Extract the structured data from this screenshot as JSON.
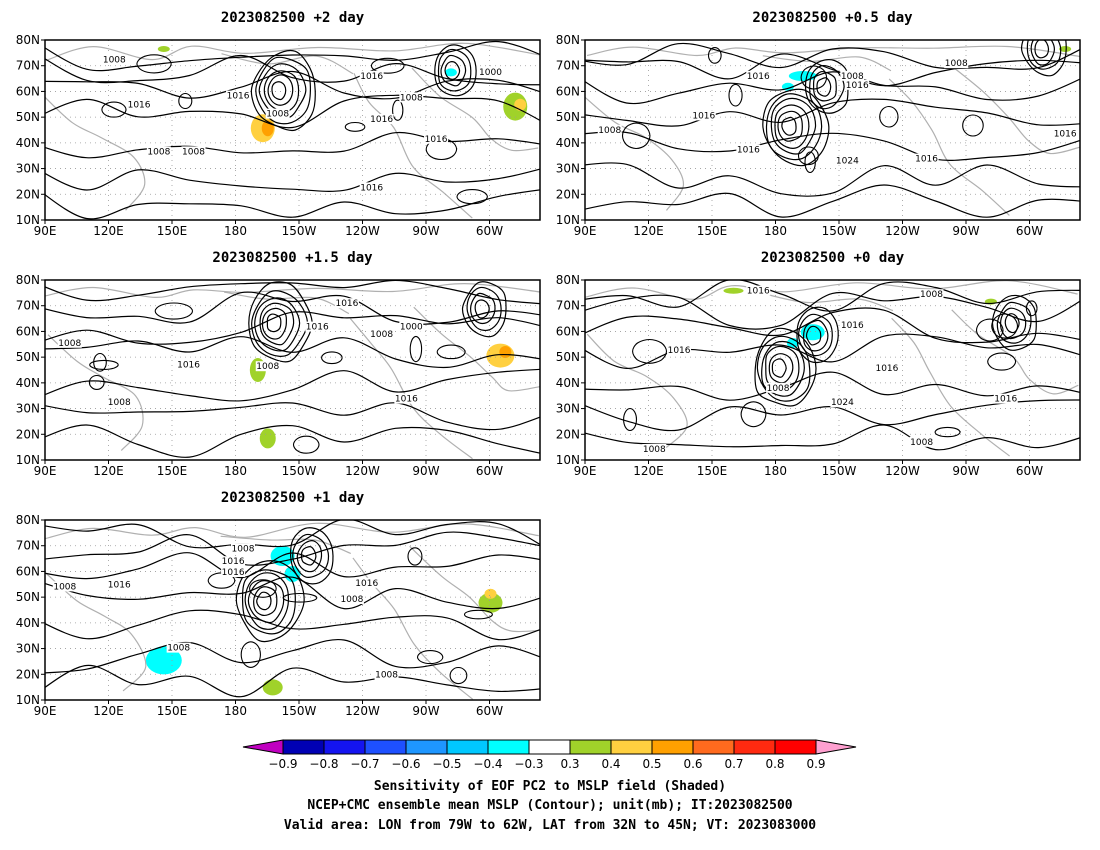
{
  "panels": [
    {
      "id": "p2",
      "title": "2023082500 +2 day",
      "contour_labels": [
        "1008",
        "1016",
        "1016",
        "1016",
        "1008",
        "1016",
        "1008",
        "1000",
        "1016",
        "1008",
        "1016",
        "1008"
      ]
    },
    {
      "id": "p05",
      "title": "2023082500 +0.5 day",
      "contour_labels": [
        "1008",
        "1016",
        "1008",
        "1016",
        "1016",
        "1008",
        "1016",
        "1024",
        "1016",
        "1016"
      ]
    },
    {
      "id": "p15",
      "title": "2023082500 +1.5 day",
      "contour_labels": [
        "1016",
        "1016",
        "1000",
        "1008",
        "1008",
        "1016",
        "1008",
        "1008",
        "1016"
      ]
    },
    {
      "id": "p0",
      "title": "2023082500 +0 day",
      "contour_labels": [
        "1016",
        "1008",
        "1016",
        "1016",
        "1008",
        "1024",
        "1016",
        "1016",
        "1008",
        "1008"
      ]
    },
    {
      "id": "p1",
      "title": "2023082500 +1 day",
      "contour_labels": [
        "1008",
        "1016",
        "1016",
        "1008",
        "1016",
        "1016",
        "1008",
        "1008",
        "1008"
      ]
    }
  ],
  "lat_ticks": [
    "80N",
    "70N",
    "60N",
    "50N",
    "40N",
    "30N",
    "20N",
    "10N"
  ],
  "lon_ticks": [
    "90E",
    "120E",
    "150E",
    "180",
    "150W",
    "120W",
    "90W",
    "60W"
  ],
  "colorbar": {
    "labels": [
      "−0.9",
      "−0.8",
      "−0.7",
      "−0.6",
      "−0.5",
      "−0.4",
      "−0.3",
      "0.3",
      "0.4",
      "0.5",
      "0.6",
      "0.7",
      "0.8",
      "0.9"
    ],
    "colors": [
      "#c000c0",
      "#0000b4",
      "#1414f0",
      "#1e50ff",
      "#1e96ff",
      "#00c8ff",
      "#00ffff",
      "#ffffff",
      "#a0d22a",
      "#ffd040",
      "#ffa000",
      "#ff6a1e",
      "#ff2a10",
      "#ff0000",
      "#ffa0d0"
    ]
  },
  "footer": {
    "line1": "Sensitivity of EOF PC2 to MSLP field (Shaded)",
    "line2": "NCEP+CMC ensemble mean MSLP (Contour); unit(mb); IT:2023082500",
    "line3": "Valid area: LON from 79W to 62W, LAT from 32N to 45N; VT: 2023083000"
  },
  "map_colors": {
    "coast": "#b0b0b0",
    "contour": "#000000",
    "grid": "#999999"
  }
}
